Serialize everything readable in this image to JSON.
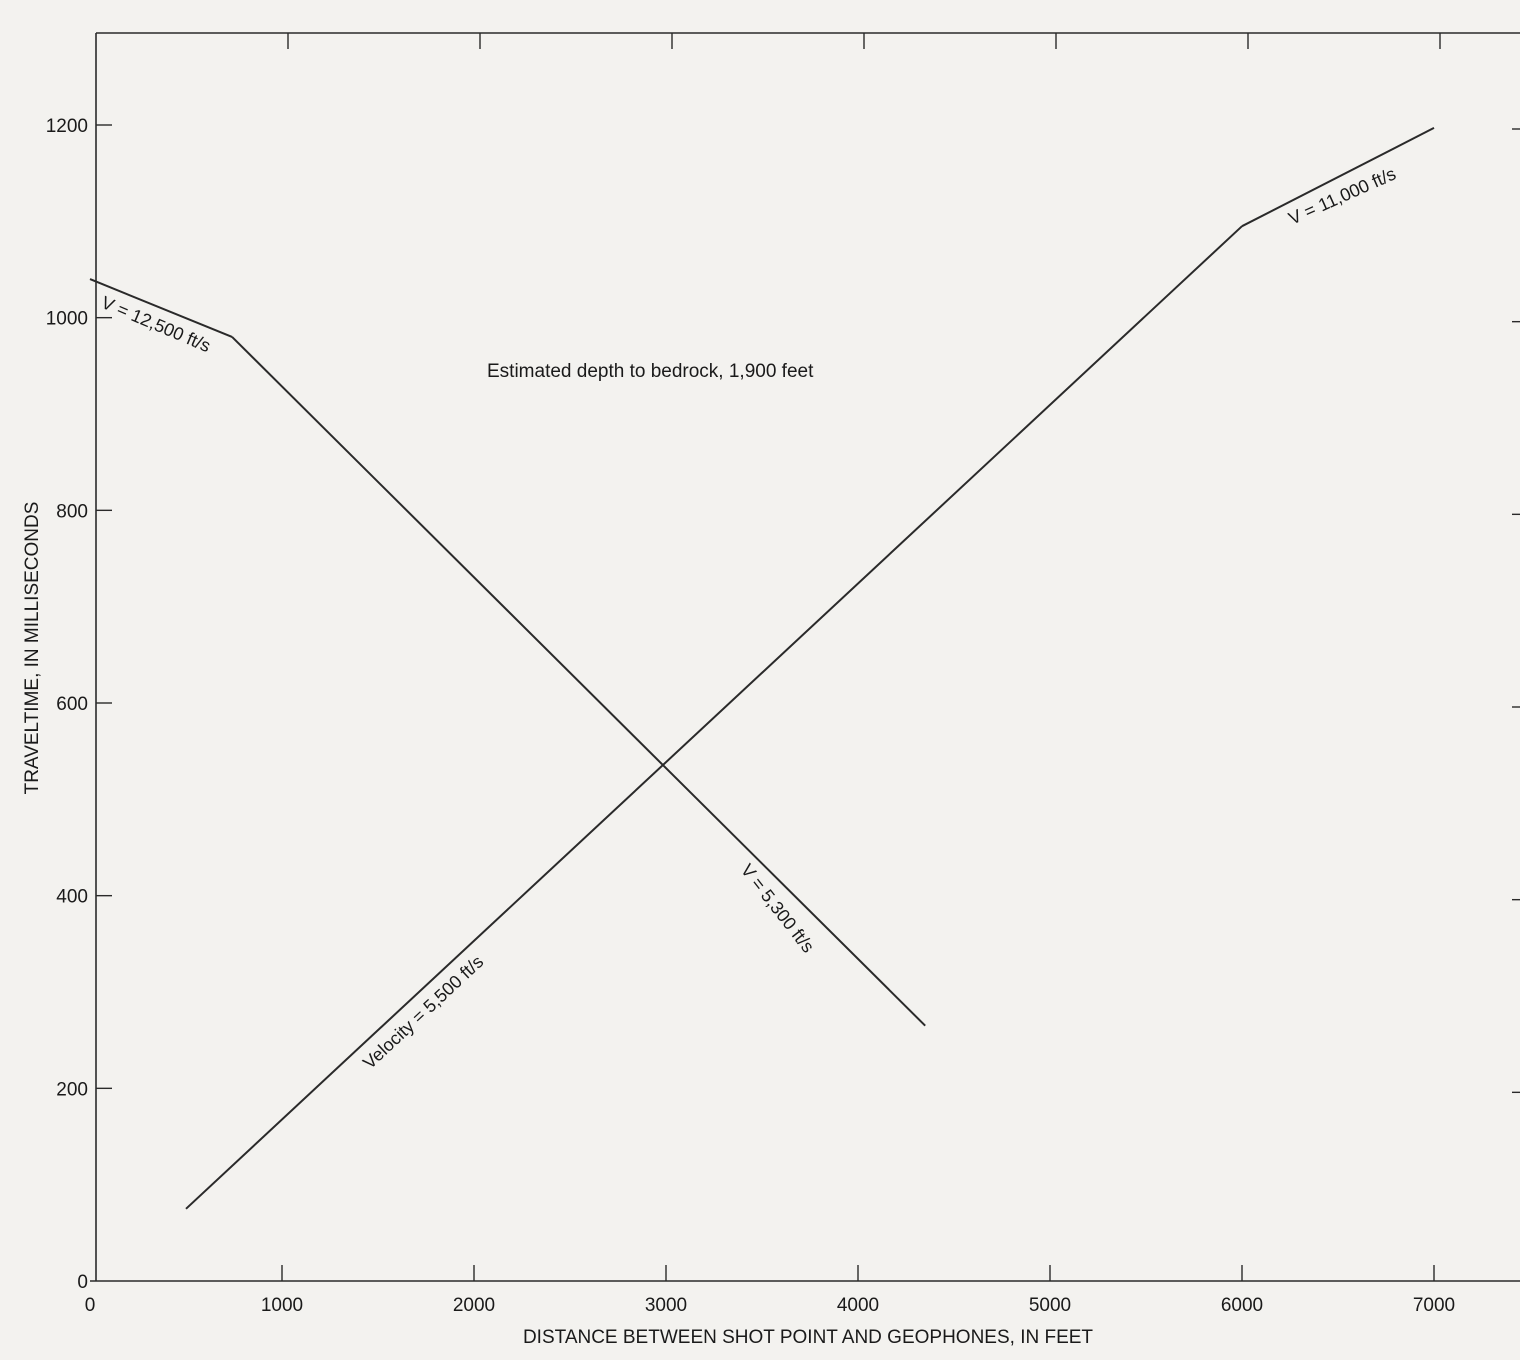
{
  "chart_data": {
    "type": "line",
    "title": "",
    "xlabel": "DISTANCE BETWEEN SHOT POINT AND GEOPHONES, IN FEET",
    "ylabel": "TRAVELTIME, IN MILLISECONDS",
    "xlim": [
      0,
      7000
    ],
    "ylim": [
      0,
      1200
    ],
    "x_ticks": [
      0,
      1000,
      2000,
      3000,
      4000,
      5000,
      6000,
      7000
    ],
    "y_ticks": [
      0,
      200,
      400,
      600,
      800,
      1000,
      1200
    ],
    "grid": false,
    "legend": "none",
    "line_color": "#2a2a2a",
    "series": [
      {
        "label": "Velocity = 5,500 ft/s",
        "points": [
          [
            500,
            75
          ],
          [
            6000,
            1095
          ]
        ]
      },
      {
        "label": "V = 11,000 ft/s",
        "points": [
          [
            6000,
            1095
          ],
          [
            7000,
            1197
          ]
        ]
      },
      {
        "label": "V = 12,500 ft/s",
        "points": [
          [
            0,
            1040
          ],
          [
            740,
            980
          ]
        ]
      },
      {
        "label": "V = 5,300 ft/s",
        "points": [
          [
            740,
            980
          ],
          [
            4350,
            265
          ]
        ]
      }
    ],
    "annotations": [
      {
        "text": "Estimated depth to bedrock, 1,900 feet",
        "x": 3100,
        "y": 940
      }
    ],
    "labels": {
      "v5500": "Velocity = 5,500 ft/s",
      "v11000": "V = 11,000 ft/s",
      "v12500": "V = 12,500 ft/s",
      "v5300": "V = 5,300 ft/s"
    }
  }
}
